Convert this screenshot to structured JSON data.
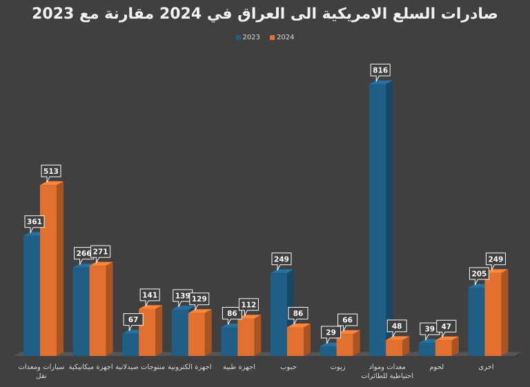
{
  "chart_data": {
    "type": "bar",
    "title": "صادرات السلع الامريكية الى العراق في 2024 مقارنة مع 2023",
    "categories": [
      "سيارات ومعدات نقل",
      "اجهزة ميكانيكية",
      "منتوجات صيدلانية",
      "اجهزة الكترونية",
      "اجهزة طبية",
      "حبوب",
      "زيوت",
      "معدات ومواد احتياطية للطائرات",
      "لحوم",
      "اخرى"
    ],
    "series": [
      {
        "name": "2023",
        "values": [
          361,
          266,
          67,
          139,
          86,
          249,
          29,
          816,
          39,
          205
        ],
        "color": "#1f5e86"
      },
      {
        "name": "2024",
        "values": [
          513,
          271,
          141,
          129,
          112,
          86,
          66,
          48,
          47,
          249
        ],
        "color": "#e2702e"
      }
    ],
    "ylim": [
      0,
      850
    ],
    "legend_position": "top-center",
    "grid": false
  },
  "colors": {
    "background": "#404040",
    "label_box_fill": "#3f3f3f",
    "label_box_border": "#ffffff",
    "floor": "#595959"
  }
}
